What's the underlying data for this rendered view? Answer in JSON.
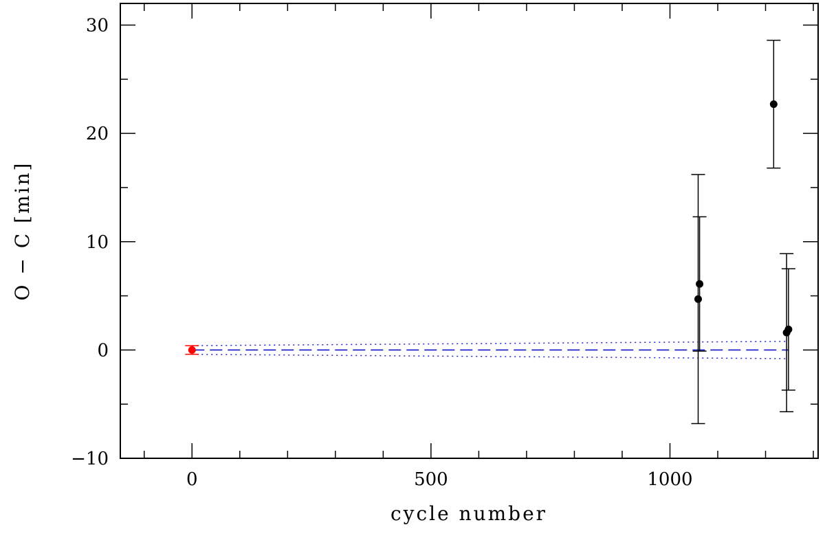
{
  "chart_data": {
    "type": "scatter",
    "xlabel": "cycle number",
    "ylabel": "O − C [min]",
    "xlim": [
      -150,
      1310
    ],
    "ylim": [
      -10,
      32
    ],
    "xticks_major": [
      0,
      500,
      1000
    ],
    "xticks_minor": [
      -100,
      100,
      200,
      300,
      400,
      600,
      700,
      800,
      900,
      1100,
      1200,
      1300
    ],
    "yticks_major": [
      -10,
      0,
      10,
      20,
      30
    ],
    "yticks_minor": [
      -5,
      5,
      15,
      25
    ],
    "xtick_labels": [
      "0",
      "500",
      "1000"
    ],
    "ytick_labels": [
      "−10",
      "0",
      "10",
      "20",
      "30"
    ],
    "grid": false,
    "series": [
      {
        "color": "#ff0000",
        "points": [
          {
            "x": 0,
            "y": 0.0,
            "err": 0.4
          }
        ]
      },
      {
        "color": "#000000",
        "points": [
          {
            "x": 1059,
            "y": 4.7,
            "err": 11.5
          },
          {
            "x": 1062,
            "y": 6.1,
            "err": 6.2
          },
          {
            "x": 1217,
            "y": 22.7,
            "err": 5.9
          },
          {
            "x": 1244,
            "y": 1.6,
            "err": 7.3
          },
          {
            "x": 1248,
            "y": 1.9,
            "err": 5.6
          }
        ]
      }
    ],
    "fit": {
      "color": "#2222cc",
      "x_range": [
        0,
        1248
      ],
      "line": {
        "start": 0.0,
        "end": 0.0
      },
      "upper": {
        "start": 0.4,
        "end": 0.8
      },
      "lower": {
        "start": -0.4,
        "end": -0.8
      }
    }
  }
}
